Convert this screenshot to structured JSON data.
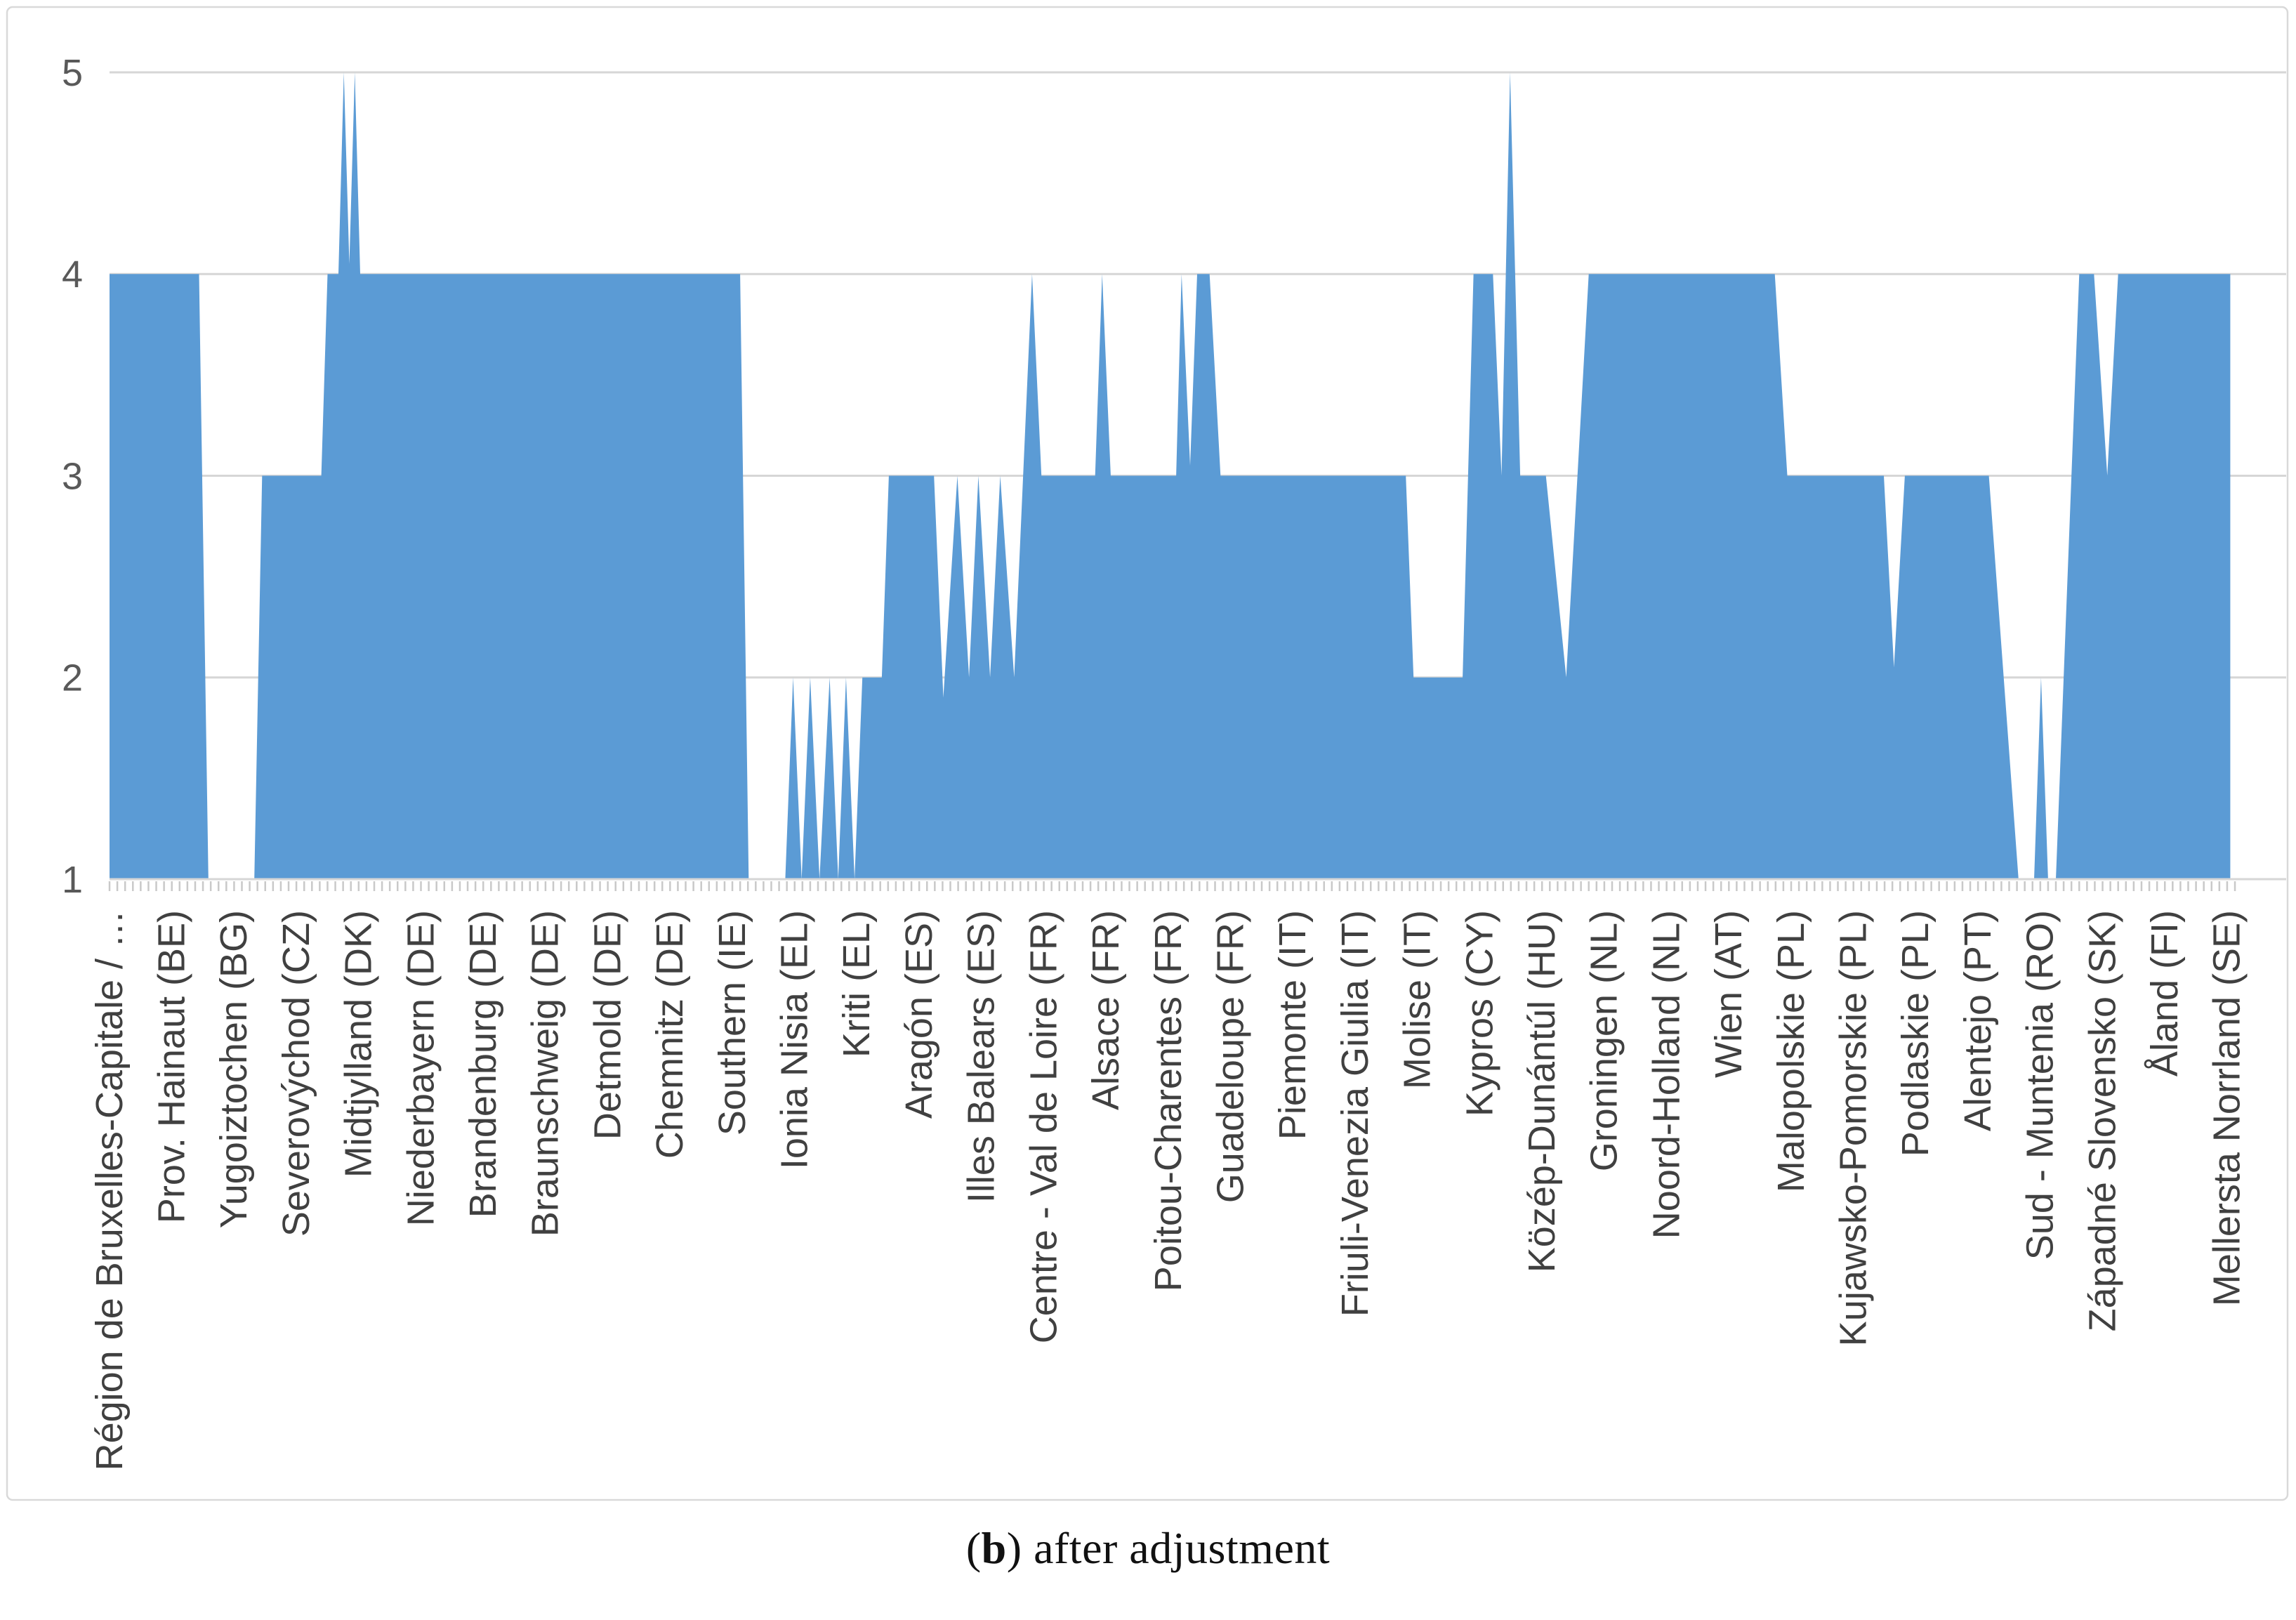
{
  "caption": {
    "open": "(",
    "bold": "b",
    "rest": ") after adjustment"
  },
  "chart_data": {
    "type": "area",
    "title": "",
    "xlabel": "",
    "ylabel": "",
    "ylim": [
      1,
      5
    ],
    "yticks": [
      1,
      2,
      3,
      4,
      5
    ],
    "grid": true,
    "legend": false,
    "n_categories": 273,
    "label_interval": 8,
    "x_labels": [
      "Région de Bruxelles-Capitale / …",
      "Prov. Hainaut (BE)",
      "Yugoiztochen (BG)",
      "Severovýchod (CZ)",
      "Midtjylland (DK)",
      "Niederbayern (DE)",
      "Brandenburg (DE)",
      "Braunschweig (DE)",
      "Detmold (DE)",
      "Chemnitz (DE)",
      "Southern (IE)",
      "Ionia Nisia (EL)",
      "Kriti (EL)",
      "Aragón (ES)",
      "Illes Balears (ES)",
      "Centre - Val de Loire (FR)",
      "Alsace (FR)",
      "Poitou-Charentes (FR)",
      "Guadeloupe (FR)",
      "Piemonte (IT)",
      "Friuli-Venezia Giulia (IT)",
      "Molise (IT)",
      "Kypros (CY)",
      "Közép-Dunántúl (HU)",
      "Groningen (NL)",
      "Noord-Holland (NL)",
      "Wien (AT)",
      "Malopolskie (PL)",
      "Kujawsko-Pomorskie (PL)",
      "Podlaskie (PL)",
      "Alentejo (PT)",
      "Sud - Muntenia (RO)",
      "Západné Slovensko (SK)",
      "Åland (FI)",
      "Mellersta Norrland (SE)"
    ],
    "points": [
      [
        0,
        4
      ],
      [
        11.5,
        4
      ],
      [
        12.7,
        1
      ],
      [
        18.6,
        1
      ],
      [
        19.6,
        3
      ],
      [
        27.2,
        3
      ],
      [
        28.0,
        4
      ],
      [
        29.4,
        4
      ],
      [
        30.1,
        5
      ],
      [
        30.8,
        4.05
      ],
      [
        31.5,
        5
      ],
      [
        32.2,
        4
      ],
      [
        81.0,
        4
      ],
      [
        82.1,
        1
      ],
      [
        86.8,
        1
      ],
      [
        87.8,
        2
      ],
      [
        88.9,
        1
      ],
      [
        90.0,
        2
      ],
      [
        91.2,
        1
      ],
      [
        92.5,
        2
      ],
      [
        93.6,
        1
      ],
      [
        94.6,
        2
      ],
      [
        95.7,
        1
      ],
      [
        96.7,
        2
      ],
      [
        99.2,
        2
      ],
      [
        100.1,
        3
      ],
      [
        105.9,
        3
      ],
      [
        107.1,
        1.9
      ],
      [
        108.9,
        3
      ],
      [
        110.4,
        2
      ],
      [
        111.6,
        3
      ],
      [
        113.1,
        2
      ],
      [
        114.4,
        3
      ],
      [
        116.2,
        2
      ],
      [
        118.5,
        4
      ],
      [
        119.7,
        3
      ],
      [
        126.6,
        3
      ],
      [
        127.5,
        4
      ],
      [
        128.6,
        3
      ],
      [
        137.0,
        3
      ],
      [
        137.7,
        4
      ],
      [
        138.8,
        3.05
      ],
      [
        139.7,
        4
      ],
      [
        141.3,
        4
      ],
      [
        142.7,
        3
      ],
      [
        166.5,
        3
      ],
      [
        167.5,
        2
      ],
      [
        173.8,
        2
      ],
      [
        175.2,
        4
      ],
      [
        177.7,
        4
      ],
      [
        178.8,
        3
      ],
      [
        179.9,
        5
      ],
      [
        181.2,
        3
      ],
      [
        184.5,
        3
      ],
      [
        187.1,
        2
      ],
      [
        190.0,
        4
      ],
      [
        213.9,
        4
      ],
      [
        215.5,
        3
      ],
      [
        227.9,
        3
      ],
      [
        229.2,
        2.05
      ],
      [
        230.6,
        3
      ],
      [
        241.4,
        3
      ],
      [
        245.2,
        1
      ],
      [
        247.2,
        1
      ],
      [
        248.1,
        2
      ],
      [
        249.0,
        1
      ],
      [
        250.0,
        1
      ],
      [
        253.0,
        4
      ],
      [
        254.9,
        4
      ],
      [
        256.6,
        3
      ],
      [
        258.0,
        4
      ],
      [
        272.4,
        4
      ]
    ],
    "colors": {
      "fill": "#5B9BD5",
      "grid": "#D6D6D6",
      "frame": "#D9D9D9",
      "tick": "#C9C9C9",
      "axis_text": "#595959",
      "category_text": "#404040",
      "background": "#FFFFFF"
    }
  }
}
